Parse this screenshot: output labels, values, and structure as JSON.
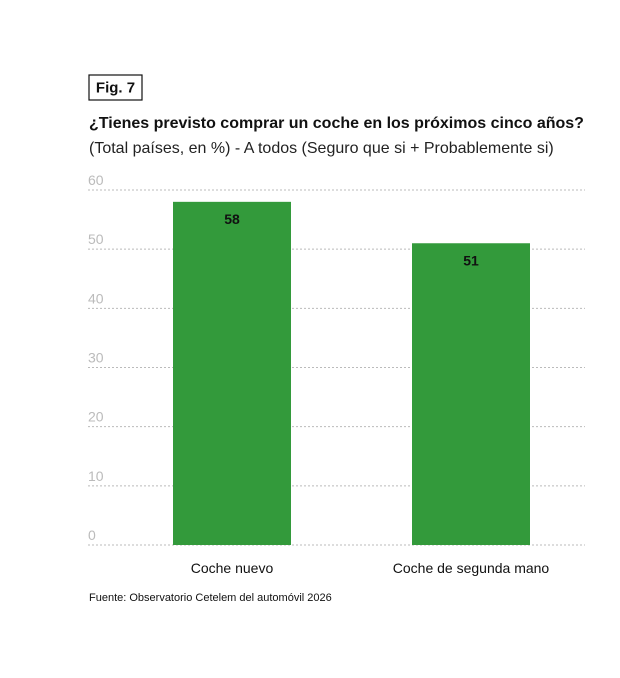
{
  "figure_label": "Fig. 7",
  "chart_data": {
    "type": "bar",
    "title": "¿Tienes previsto comprar un coche en los próximos cinco años?",
    "subtitle": "(Total países, en %) - A todos (Seguro que si + Probablemente si)",
    "categories": [
      "Coche nuevo",
      "Coche de segunda mano"
    ],
    "values": [
      58,
      51
    ],
    "color": "#339a3b",
    "ylim": [
      0,
      60
    ],
    "yticks": [
      0,
      10,
      20,
      30,
      40,
      50,
      60
    ],
    "grid": true,
    "source": "Fuente: Observatorio Cetelem del automóvil 2026"
  }
}
